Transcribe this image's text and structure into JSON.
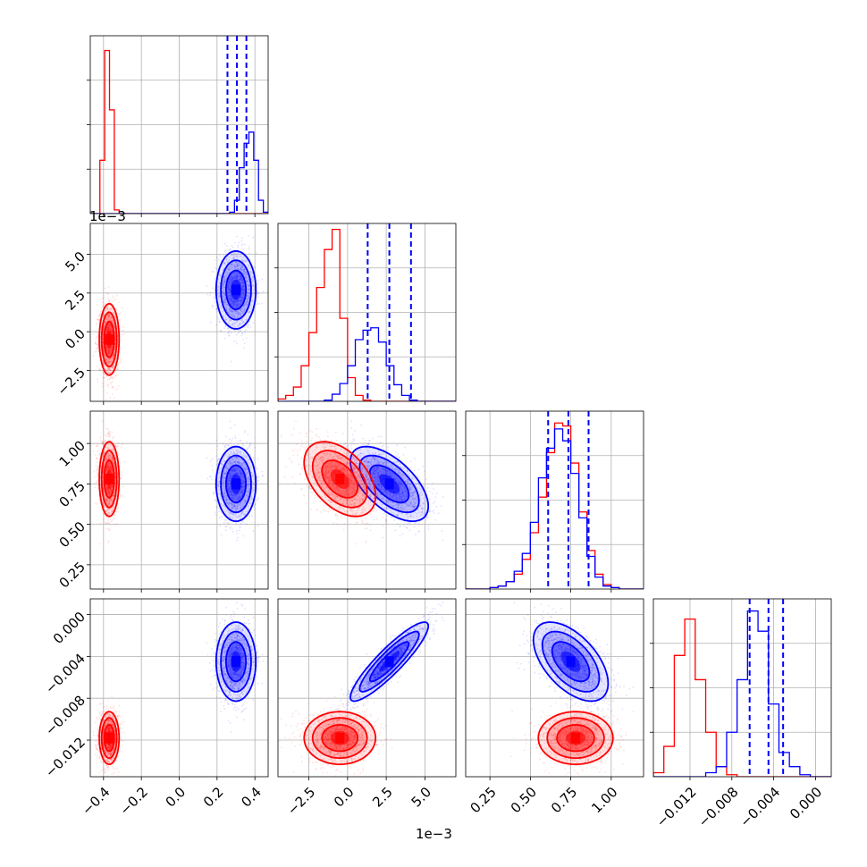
{
  "chart_data": {
    "type": "corner",
    "parameters": 4,
    "grid": true,
    "quantile_lines_series": "blue",
    "series": [
      {
        "color": "#0000ff",
        "means": [
          0.3,
          2.7,
          0.75,
          -0.0045
        ],
        "sds": [
          0.05,
          1.2,
          0.11,
          0.0018
        ],
        "corr": [
          [
            1,
            0,
            0,
            0
          ],
          [
            0,
            1,
            -0.6,
            0.9
          ],
          [
            0,
            -0.6,
            1,
            -0.55
          ],
          [
            0,
            0.9,
            -0.55,
            1
          ]
        ]
      },
      {
        "color": "#ff0000",
        "means": [
          -0.37,
          -0.5,
          0.78,
          -0.0118
        ],
        "sds": [
          0.025,
          1.1,
          0.11,
          0.0012
        ],
        "corr": [
          [
            1,
            0,
            0,
            0
          ],
          [
            0,
            1,
            -0.45,
            0
          ],
          [
            0,
            -0.45,
            1,
            0
          ],
          [
            0,
            0,
            0,
            1
          ]
        ]
      }
    ],
    "histograms": [
      {
        "param": 0,
        "bins": {
          "x0": -0.47,
          "x1": 0.47,
          "n": 37
        },
        "series": [
          {
            "color": "#ff0000",
            "counts": [
              0,
              0,
              72,
              220,
              140,
              5,
              0,
              0,
              0,
              0,
              0,
              0,
              0,
              0,
              0,
              0,
              0,
              0,
              0,
              0,
              0,
              0,
              0,
              0,
              0,
              0,
              0,
              0,
              0,
              0,
              0,
              0,
              0,
              0,
              0,
              0,
              0
            ]
          },
          {
            "color": "#0000ff",
            "counts": [
              0,
              0,
              0,
              0,
              0,
              0,
              0,
              0,
              0,
              0,
              0,
              0,
              0,
              0,
              0,
              0,
              0,
              0,
              0,
              0,
              0,
              0,
              0,
              0,
              0,
              0,
              0,
              0,
              0,
              2,
              18,
              62,
              95,
              110,
              72,
              18,
              2
            ]
          }
        ],
        "quantiles": [
          0.255,
          0.305,
          0.355
        ],
        "ylim": [
          0,
          240
        ]
      },
      {
        "param": 1,
        "offset_label": "1e−3",
        "bins": {
          "x0": -4.5,
          "x1": 7.0,
          "n": 23
        },
        "series": [
          {
            "color": "#ff0000",
            "counts": [
              2,
              5,
              12,
              30,
              58,
              96,
              128,
              145,
              70,
              20,
              5,
              1,
              0,
              0,
              0,
              0,
              0,
              0,
              0,
              0,
              0,
              0,
              0
            ]
          },
          {
            "color": "#0000ff",
            "counts": [
              0,
              0,
              0,
              0,
              0,
              0,
              1,
              6,
              15,
              30,
              52,
              60,
              62,
              50,
              30,
              14,
              5,
              1,
              0,
              0,
              0,
              0,
              0
            ]
          }
        ],
        "quantiles": [
          1.3,
          2.7,
          4.1
        ],
        "ylim": [
          0,
          150
        ]
      },
      {
        "param": 2,
        "bins": {
          "x0": 0.1,
          "x1": 1.2,
          "n": 22
        },
        "series": [
          {
            "color": "#ff0000",
            "counts": [
              0,
              0,
              0,
              1,
              2,
              5,
              10,
              20,
              38,
              62,
              92,
              112,
              110,
              85,
              52,
              26,
              10,
              3,
              1,
              0,
              0,
              0
            ]
          },
          {
            "color": "#0000ff",
            "counts": [
              0,
              0,
              0,
              1,
              2,
              5,
              12,
              24,
              45,
              75,
              95,
              108,
              100,
              78,
              48,
              22,
              8,
              2,
              1,
              0,
              0,
              0
            ]
          }
        ],
        "quantiles": [
          0.61,
          0.735,
          0.86
        ],
        "ylim": [
          0,
          120
        ]
      },
      {
        "param": 3,
        "bins": {
          "x0": -0.0155,
          "x1": 0.0015,
          "n": 17
        },
        "series": [
          {
            "color": "#ff0000",
            "counts": [
              2,
              15,
              60,
              78,
              48,
              22,
              5,
              1,
              0,
              0,
              0,
              0,
              0,
              0,
              0,
              0,
              0
            ]
          },
          {
            "color": "#0000ff",
            "counts": [
              0,
              0,
              0,
              0,
              0,
              2,
              5,
              22,
              48,
              82,
              72,
              36,
              12,
              5,
              1,
              0,
              0
            ]
          }
        ],
        "quantiles": [
          -0.0063,
          -0.0045,
          -0.0031
        ],
        "ylim": [
          0,
          88
        ]
      }
    ],
    "axes": [
      {
        "param": 0,
        "range": [
          -0.47,
          0.47
        ],
        "ticks": [
          -0.4,
          -0.2,
          0.0,
          0.2,
          0.4
        ],
        "tick_labels": [
          "−0.4",
          "−0.2",
          "0.0",
          "0.2",
          "0.4"
        ]
      },
      {
        "param": 1,
        "range": [
          -4.5,
          7.0
        ],
        "ticks": [
          -2.5,
          0.0,
          2.5,
          5.0
        ],
        "tick_labels": [
          "−2.5",
          "0.0",
          "2.5",
          "5.0"
        ],
        "offset_label": "1e−3"
      },
      {
        "param": 2,
        "range": [
          0.1,
          1.2
        ],
        "ticks": [
          0.25,
          0.5,
          0.75,
          1.0
        ],
        "tick_labels": [
          "0.25",
          "0.50",
          "0.75",
          "1.00"
        ]
      },
      {
        "param": 3,
        "range": [
          -0.0155,
          0.0015
        ],
        "ticks": [
          -0.012,
          -0.008,
          -0.004,
          0.0
        ],
        "tick_labels": [
          "−0.012",
          "−0.008",
          "−0.004",
          "0.000"
        ]
      }
    ]
  }
}
